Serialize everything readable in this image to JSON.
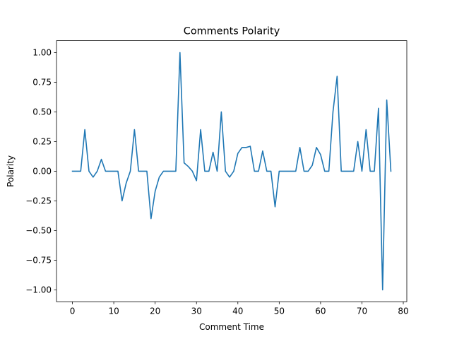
{
  "chart_data": {
    "type": "line",
    "title": "Comments Polarity",
    "xlabel": "Comment Time",
    "ylabel": "Polarity",
    "xlim": [
      -3.85,
      80.85
    ],
    "ylim": [
      -1.1,
      1.1
    ],
    "xticks": [
      0,
      10,
      20,
      30,
      40,
      50,
      60,
      70,
      80
    ],
    "xtick_labels": [
      "0",
      "10",
      "20",
      "30",
      "40",
      "50",
      "60",
      "70",
      "80"
    ],
    "yticks": [
      -1.0,
      -0.75,
      -0.5,
      -0.25,
      0.0,
      0.25,
      0.5,
      0.75,
      1.0
    ],
    "ytick_labels": [
      "−1.00",
      "−0.75",
      "−0.50",
      "−0.25",
      "0.00",
      "0.25",
      "0.50",
      "0.75",
      "1.00"
    ],
    "grid": false,
    "color": "#1f77b4",
    "series": [
      {
        "x": [
          0,
          1,
          2,
          3,
          4,
          5,
          6,
          7,
          8,
          9,
          10,
          11,
          12,
          13,
          14,
          15,
          16,
          17,
          18,
          19,
          20,
          21,
          22,
          23,
          24,
          25,
          26,
          27,
          28,
          29,
          30,
          31,
          32,
          33,
          34,
          35,
          36,
          37,
          38,
          39,
          40,
          41,
          42,
          43,
          44,
          45,
          46,
          47,
          48,
          49,
          50,
          51,
          52,
          53,
          54,
          55,
          56,
          57,
          58,
          59,
          60,
          61,
          62,
          63,
          64,
          65,
          66,
          67,
          68,
          69,
          70,
          71,
          72,
          73,
          74,
          75,
          76,
          77
        ],
        "values": [
          0,
          0,
          0,
          0.35,
          0,
          -0.05,
          0,
          0.1,
          0,
          0,
          0,
          0,
          -0.25,
          -0.1,
          0,
          0.35,
          0,
          0,
          0,
          -0.4,
          -0.17,
          -0.05,
          0,
          0,
          0,
          0,
          1.0,
          0.07,
          0.04,
          0,
          -0.08,
          0.35,
          0,
          0,
          0.16,
          0,
          0.5,
          0,
          -0.05,
          0,
          0.15,
          0.2,
          0.2,
          0.21,
          0,
          0,
          0.17,
          0,
          0,
          -0.3,
          0,
          0,
          0,
          0,
          0,
          0.2,
          0,
          0,
          0.05,
          0.2,
          0.14,
          0,
          0,
          0.5,
          0.8,
          0,
          0,
          0,
          0,
          0.25,
          0,
          0.35,
          0,
          0,
          0.53,
          -1.0,
          0.6,
          0
        ]
      }
    ]
  }
}
